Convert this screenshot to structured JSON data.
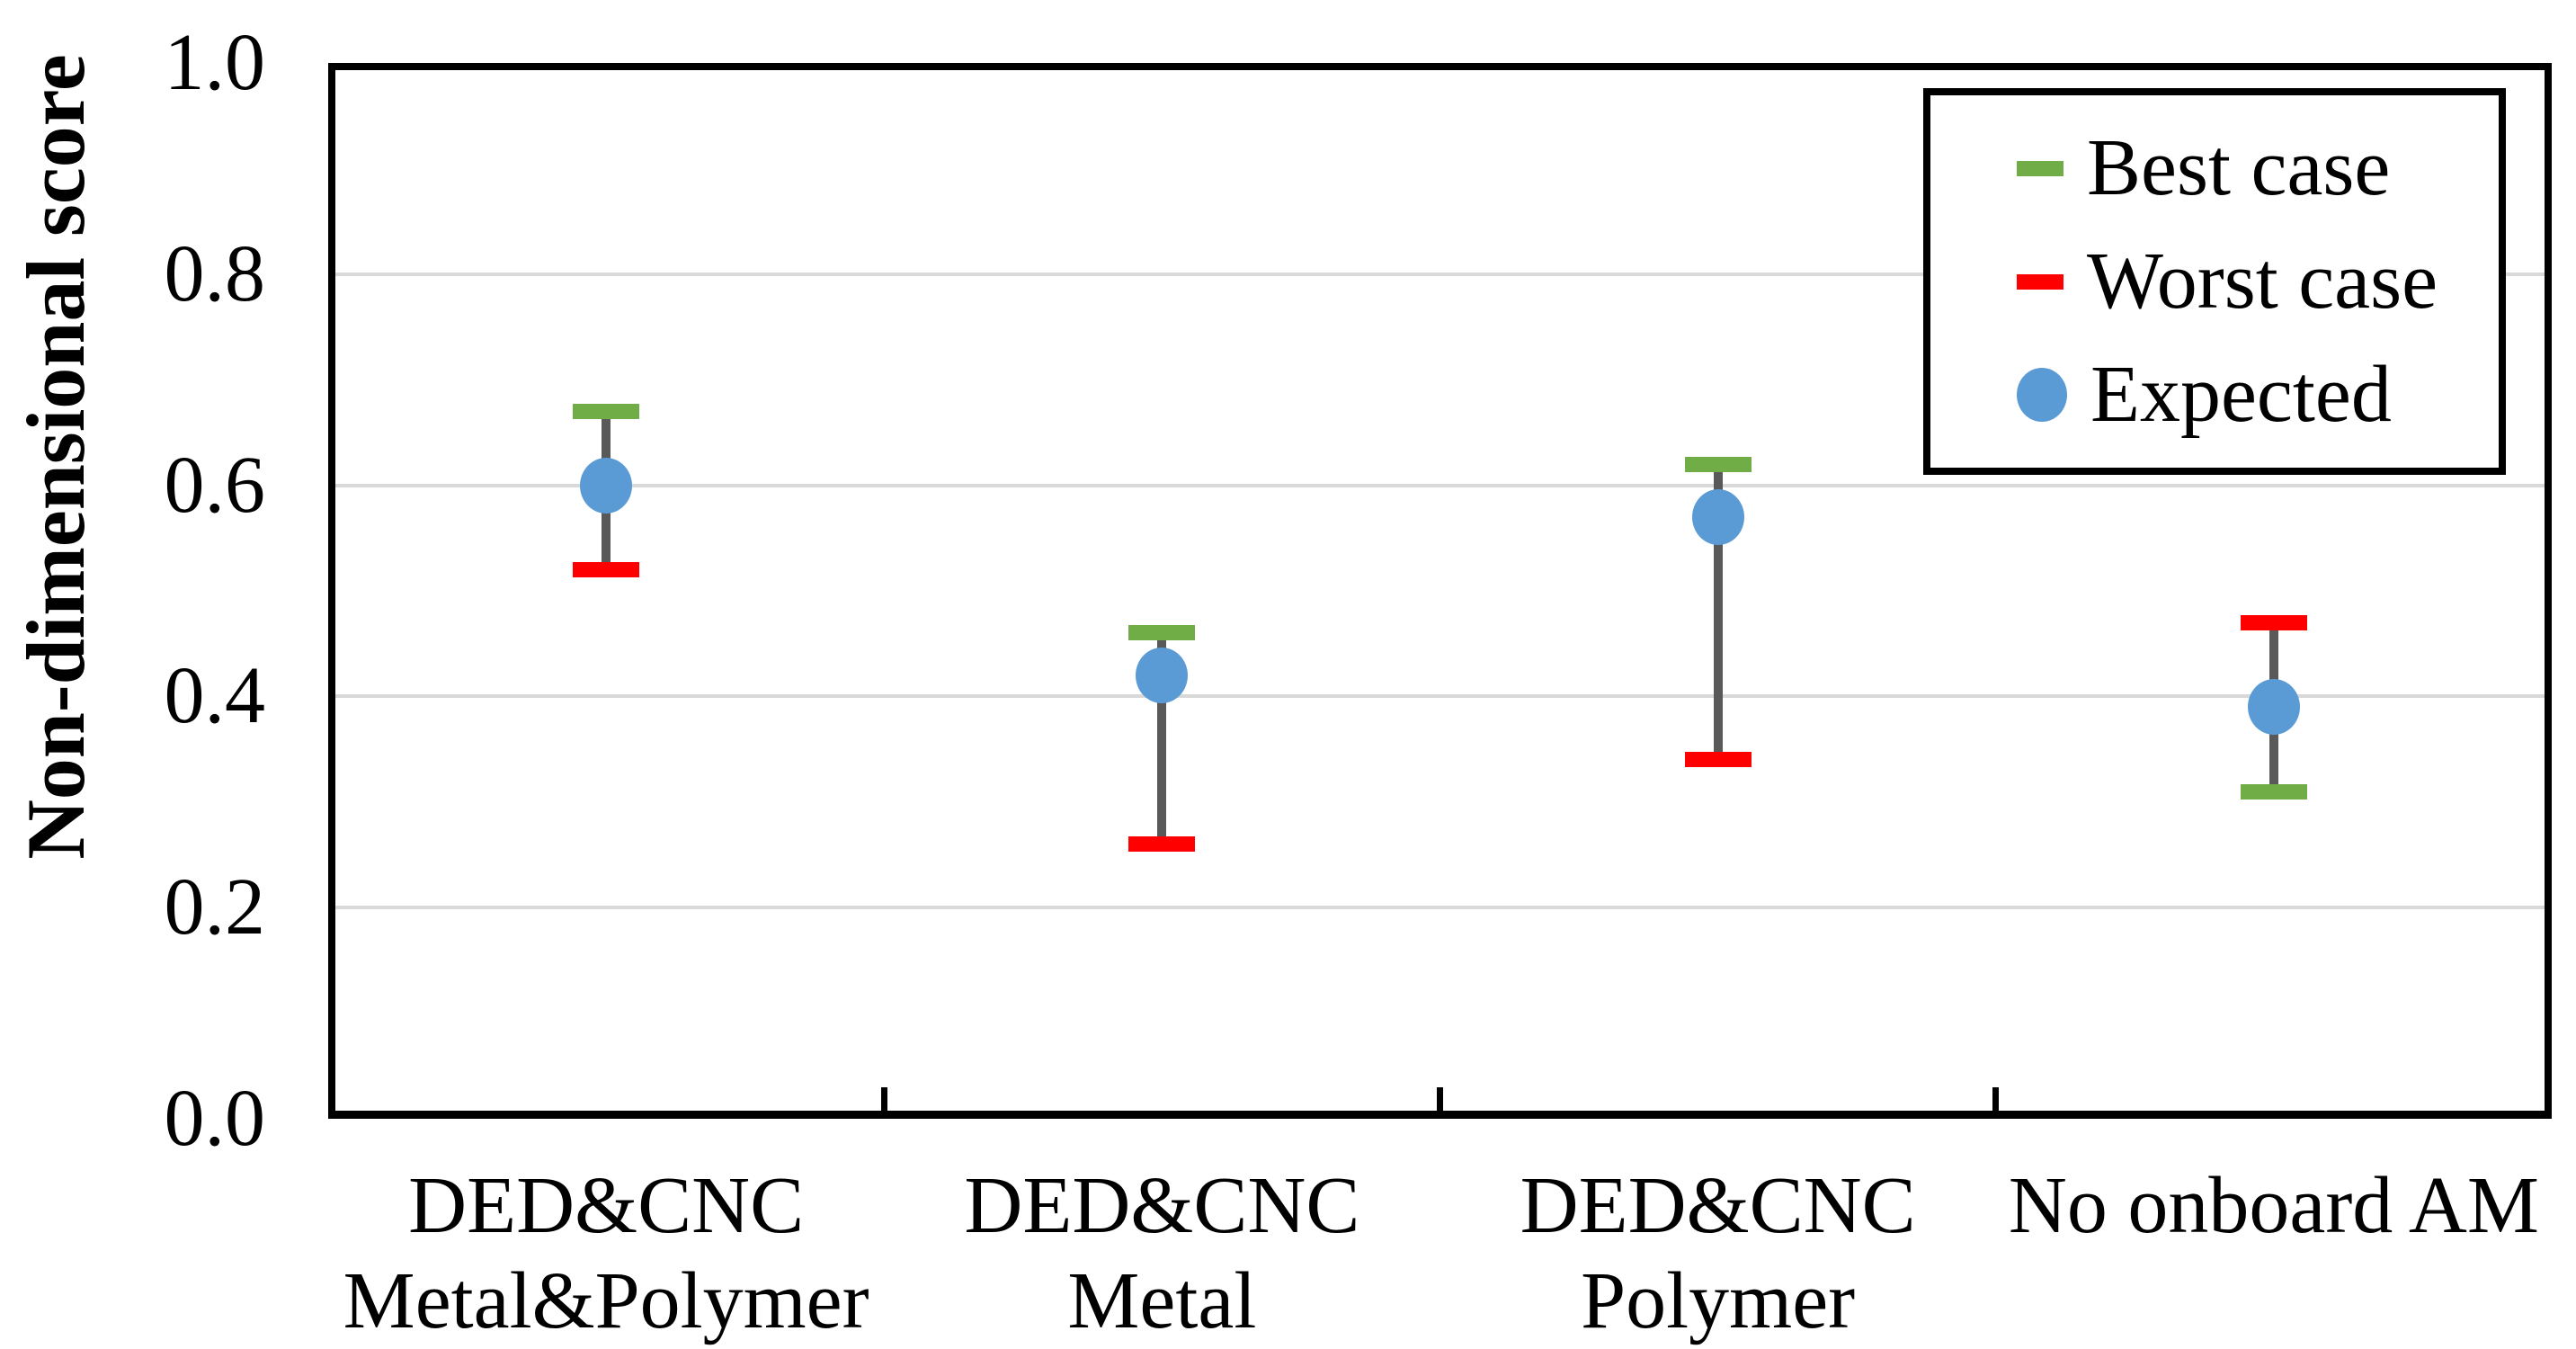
{
  "chart_data": {
    "type": "scatter",
    "title": "",
    "xlabel": "",
    "ylabel": "Non-dimensional score",
    "ylim": [
      0.0,
      1.0
    ],
    "yticks": [
      0.0,
      0.2,
      0.4,
      0.6,
      0.8,
      1.0
    ],
    "ytick_labels": [
      "0.0",
      "0.2",
      "0.4",
      "0.6",
      "0.8",
      "1.0"
    ],
    "grid": "horizontal",
    "gridline_color": "#D9D9D9",
    "frame_color": "#000000",
    "error_bar_color": "#595959",
    "categories": [
      {
        "lines": [
          "DED&CNC",
          "Metal&Polymer"
        ]
      },
      {
        "lines": [
          "DED&CNC",
          "Metal"
        ]
      },
      {
        "lines": [
          "DED&CNC",
          "Polymer"
        ]
      },
      {
        "lines": [
          "No onboard AM"
        ]
      }
    ],
    "series": [
      {
        "name": "Best case",
        "marker": "dash",
        "color": "#70AD47",
        "values": [
          0.67,
          0.46,
          0.62,
          0.31
        ]
      },
      {
        "name": "Worst case",
        "marker": "dash",
        "color": "#FF0000",
        "values": [
          0.52,
          0.26,
          0.34,
          0.47
        ]
      },
      {
        "name": "Expected",
        "marker": "circle",
        "color": "#5B9BD5",
        "values": [
          0.6,
          0.42,
          0.57,
          0.39
        ]
      }
    ],
    "legend": {
      "position": "top-right",
      "entries": [
        "Best case",
        "Worst case",
        "Expected"
      ]
    }
  }
}
